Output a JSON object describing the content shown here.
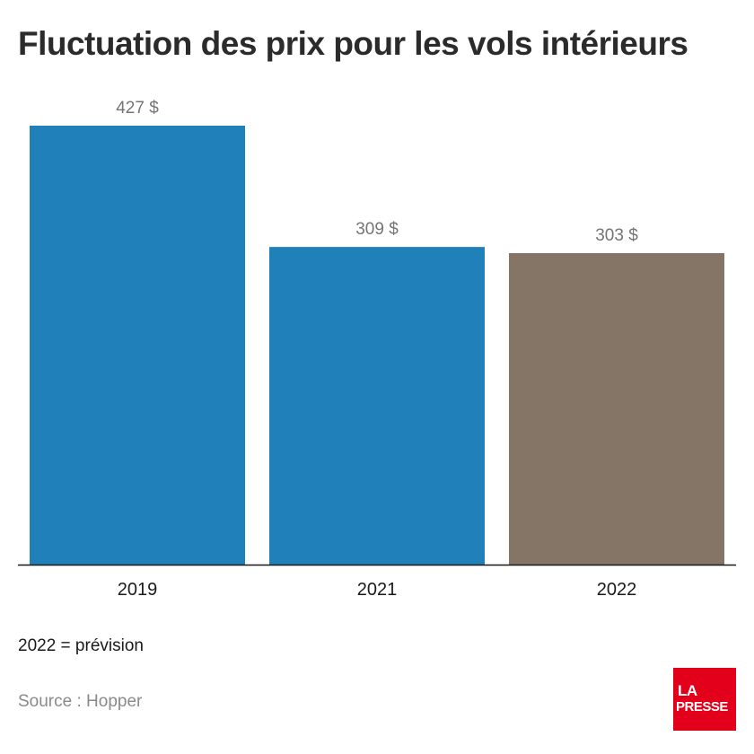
{
  "title": "Fluctuation des prix pour les vols intérieurs",
  "note": "2022 = prévision",
  "source": "Source : Hopper",
  "logo": {
    "line1": "LA",
    "line2": "PRESSE"
  },
  "colors": {
    "actual": "#2080b9",
    "forecast": "#847567",
    "label": "#757575",
    "axis": "#1a1a1a",
    "logo_bg": "#e3001b"
  },
  "chart_data": {
    "type": "bar",
    "title": "Fluctuation des prix pour les vols intérieurs",
    "categories": [
      "2019",
      "2021",
      "2022"
    ],
    "values": [
      427,
      309,
      303
    ],
    "value_labels": [
      "427 $",
      "309 $",
      "303 $"
    ],
    "forecast": [
      false,
      false,
      true
    ],
    "ylim": [
      0,
      427
    ],
    "grid": false,
    "xlabel": "",
    "ylabel": ""
  }
}
